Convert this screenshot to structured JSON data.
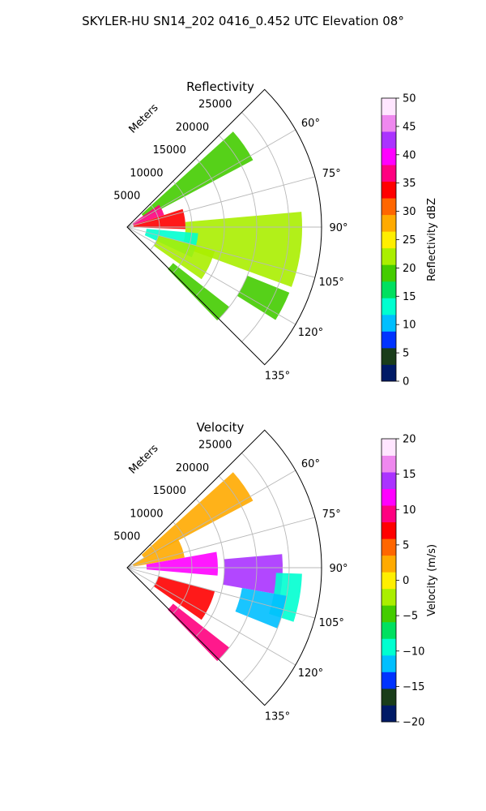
{
  "figure": {
    "title": "SKYLER-HU  SN14_202  0416_0.452 UTC Elevation 08°"
  },
  "chart_data": [
    {
      "type": "heatmap",
      "title": "Reflectivity",
      "radial_axis_label": "Meters",
      "radial_ticks": [
        "5000",
        "10000",
        "15000",
        "20000",
        "25000"
      ],
      "radial_tick_values": [
        5000,
        10000,
        15000,
        20000,
        25000
      ],
      "azimuth_ticks": [
        "60°",
        "75°",
        "90°",
        "105°",
        "120°",
        "135°"
      ],
      "azimuth_tick_values": [
        60,
        75,
        90,
        105,
        120,
        135
      ],
      "azimuth_range": [
        45,
        135
      ],
      "range_max": 30000,
      "grid": true,
      "colorbar": {
        "label": "Reflectivity dBZ",
        "range": [
          0,
          50
        ],
        "ticks": [
          "0",
          "5",
          "10",
          "15",
          "20",
          "25",
          "30",
          "35",
          "40",
          "45",
          "50"
        ],
        "tick_values": [
          0,
          5,
          10,
          15,
          20,
          25,
          30,
          35,
          40,
          45,
          50
        ],
        "colors": [
          "#001a66",
          "#1a3d1a",
          "#0033ff",
          "#00bfff",
          "#00ffd0",
          "#00e060",
          "#44cc00",
          "#aaee00",
          "#ffee00",
          "#ffaa00",
          "#ff6600",
          "#ff0000",
          "#ff0080",
          "#ff00ff",
          "#aa33ff",
          "#ee88ee",
          "#ffe6ff"
        ]
      },
      "echo_regions": [
        {
          "az": [
            48,
            62
          ],
          "r": [
            3000,
            22000
          ],
          "value": 18
        },
        {
          "az": [
            55,
            72
          ],
          "r": [
            1000,
            6000
          ],
          "value": 38
        },
        {
          "az": [
            72,
            92
          ],
          "r": [
            1000,
            9000
          ],
          "value": 34
        },
        {
          "az": [
            85,
            110
          ],
          "r": [
            9000,
            27000
          ],
          "value": 21
        },
        {
          "az": [
            95,
            115
          ],
          "r": [
            3000,
            11000
          ],
          "value": 14
        },
        {
          "az": [
            105,
            125
          ],
          "r": [
            5000,
            14000
          ],
          "value": 22
        },
        {
          "az": [
            112,
            122
          ],
          "r": [
            20000,
            27000
          ],
          "value": 20
        },
        {
          "az": [
            128,
            136
          ],
          "r": [
            9000,
            20000
          ],
          "value": 20
        }
      ]
    },
    {
      "type": "heatmap",
      "title": "Velocity",
      "radial_axis_label": "Meters",
      "radial_ticks": [
        "5000",
        "10000",
        "15000",
        "20000",
        "25000"
      ],
      "radial_tick_values": [
        5000,
        10000,
        15000,
        20000,
        25000
      ],
      "azimuth_ticks": [
        "60°",
        "75°",
        "90°",
        "105°",
        "120°",
        "135°"
      ],
      "azimuth_tick_values": [
        60,
        75,
        90,
        105,
        120,
        135
      ],
      "azimuth_range": [
        45,
        135
      ],
      "range_max": 30000,
      "grid": true,
      "colorbar": {
        "label": "Velocity (m/s)",
        "range": [
          -20,
          20
        ],
        "ticks": [
          "−20",
          "−15",
          "−10",
          "−5",
          "0",
          "5",
          "10",
          "15",
          "20"
        ],
        "tick_values": [
          -20,
          -15,
          -10,
          -5,
          0,
          5,
          10,
          15,
          20
        ],
        "colors": [
          "#001a66",
          "#1a3d1a",
          "#0033ff",
          "#00bfff",
          "#00ffd0",
          "#00e060",
          "#44cc00",
          "#aaee00",
          "#ffee00",
          "#ffaa00",
          "#ff6600",
          "#ff0000",
          "#ff0080",
          "#ff00ff",
          "#aa33ff",
          "#ee88ee",
          "#ffe6ff"
        ]
      },
      "echo_regions": [
        {
          "az": [
            48,
            62
          ],
          "r": [
            3000,
            22000
          ],
          "value": 2
        },
        {
          "az": [
            60,
            80
          ],
          "r": [
            1000,
            9000
          ],
          "value": 3
        },
        {
          "az": [
            80,
            95
          ],
          "r": [
            3000,
            14000
          ],
          "value": 11
        },
        {
          "az": [
            85,
            100
          ],
          "r": [
            15000,
            24000
          ],
          "value": 15
        },
        {
          "az": [
            92,
            108
          ],
          "r": [
            23000,
            27000
          ],
          "value": -10
        },
        {
          "az": [
            100,
            112
          ],
          "r": [
            18000,
            25000
          ],
          "value": -12
        },
        {
          "az": [
            105,
            125
          ],
          "r": [
            5000,
            14000
          ],
          "value": 8
        },
        {
          "az": [
            128,
            136
          ],
          "r": [
            9000,
            20000
          ],
          "value": 10
        }
      ]
    }
  ]
}
